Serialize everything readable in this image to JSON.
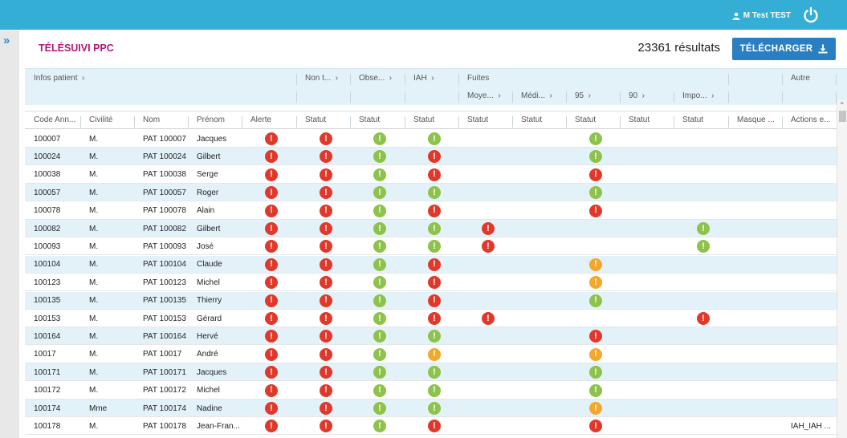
{
  "user": {
    "name": "M Test TEST",
    "icon": "user-icon"
  },
  "power_icon": "power-icon",
  "sidebar_toggle": "»",
  "page": {
    "title": "TÉLÉSUIVI PPC",
    "results": "23361 résultats",
    "download_label": "TÉLÉCHARGER",
    "download_icon": "download-icon"
  },
  "colors": {
    "topbar": "#34aed4",
    "red": "#e0392b",
    "green": "#8dc24b",
    "orange": "#f3a72d",
    "accent": "#2a7fc2",
    "title": "#b01878"
  },
  "groups": {
    "infos_patient": "Infos patient",
    "non_t": "Non t...",
    "obse": "Obse...",
    "iah": "IAH",
    "fuites": "Fuites",
    "autre": "Autre"
  },
  "subgroups": {
    "moye": "Moye...",
    "medi": "Médi...",
    "p95": "95",
    "p90": "90",
    "impo": "Impo..."
  },
  "columns": [
    "Code Ann...",
    "Civilité",
    "Nom",
    "Prénom",
    "Alerte",
    "Statut",
    "Statut",
    "Statut",
    "Statut",
    "Statut",
    "Statut",
    "Statut",
    "Statut",
    "Masque ...",
    "Actions e..."
  ],
  "rows": [
    {
      "code": "100007",
      "civ": "M.",
      "nom": "PAT 100007",
      "prenom": "Jacques",
      "alerte": "red",
      "s1": "red",
      "s2": "green",
      "s3": "green",
      "s4": "",
      "s5": "",
      "s6": "green",
      "s7": "",
      "s8": "",
      "actions": ""
    },
    {
      "code": "100024",
      "civ": "M.",
      "nom": "PAT 100024",
      "prenom": "Gilbert",
      "alerte": "red",
      "s1": "red",
      "s2": "green",
      "s3": "red",
      "s4": "",
      "s5": "",
      "s6": "green",
      "s7": "",
      "s8": "",
      "actions": ""
    },
    {
      "code": "100038",
      "civ": "M.",
      "nom": "PAT 100038",
      "prenom": "Serge",
      "alerte": "red",
      "s1": "red",
      "s2": "green",
      "s3": "red",
      "s4": "",
      "s5": "",
      "s6": "red",
      "s7": "",
      "s8": "",
      "actions": ""
    },
    {
      "code": "100057",
      "civ": "M.",
      "nom": "PAT 100057",
      "prenom": "Roger",
      "alerte": "red",
      "s1": "red",
      "s2": "green",
      "s3": "green",
      "s4": "",
      "s5": "",
      "s6": "green",
      "s7": "",
      "s8": "",
      "actions": ""
    },
    {
      "code": "100078",
      "civ": "M.",
      "nom": "PAT 100078",
      "prenom": "Alain",
      "alerte": "red",
      "s1": "red",
      "s2": "green",
      "s3": "red",
      "s4": "",
      "s5": "",
      "s6": "red",
      "s7": "",
      "s8": "",
      "actions": ""
    },
    {
      "code": "100082",
      "civ": "M.",
      "nom": "PAT 100082",
      "prenom": "Gilbert",
      "alerte": "red",
      "s1": "red",
      "s2": "green",
      "s3": "green",
      "s4": "red",
      "s5": "",
      "s6": "",
      "s7": "",
      "s8": "green",
      "actions": ""
    },
    {
      "code": "100093",
      "civ": "M.",
      "nom": "PAT 100093",
      "prenom": "José",
      "alerte": "red",
      "s1": "red",
      "s2": "green",
      "s3": "green",
      "s4": "red",
      "s5": "",
      "s6": "",
      "s7": "",
      "s8": "green",
      "actions": ""
    },
    {
      "code": "100104",
      "civ": "M.",
      "nom": "PAT 100104",
      "prenom": "Claude",
      "alerte": "red",
      "s1": "red",
      "s2": "green",
      "s3": "red",
      "s4": "",
      "s5": "",
      "s6": "orange",
      "s7": "",
      "s8": "",
      "actions": ""
    },
    {
      "code": "100123",
      "civ": "M.",
      "nom": "PAT 100123",
      "prenom": "Michel",
      "alerte": "red",
      "s1": "red",
      "s2": "green",
      "s3": "red",
      "s4": "",
      "s5": "",
      "s6": "orange",
      "s7": "",
      "s8": "",
      "actions": ""
    },
    {
      "code": "100135",
      "civ": "M.",
      "nom": "PAT 100135",
      "prenom": "Thierry",
      "alerte": "red",
      "s1": "red",
      "s2": "green",
      "s3": "red",
      "s4": "",
      "s5": "",
      "s6": "green",
      "s7": "",
      "s8": "",
      "actions": ""
    },
    {
      "code": "100153",
      "civ": "M.",
      "nom": "PAT 100153",
      "prenom": "Gérard",
      "alerte": "red",
      "s1": "red",
      "s2": "green",
      "s3": "red",
      "s4": "red",
      "s5": "",
      "s6": "",
      "s7": "",
      "s8": "red",
      "actions": ""
    },
    {
      "code": "100164",
      "civ": "M.",
      "nom": "PAT 100164",
      "prenom": "Hervé",
      "alerte": "red",
      "s1": "red",
      "s2": "green",
      "s3": "green",
      "s4": "",
      "s5": "",
      "s6": "red",
      "s7": "",
      "s8": "",
      "actions": ""
    },
    {
      "code": "10017",
      "civ": "M.",
      "nom": "PAT 10017",
      "prenom": "André",
      "alerte": "red",
      "s1": "red",
      "s2": "green",
      "s3": "orange",
      "s4": "",
      "s5": "",
      "s6": "orange",
      "s7": "",
      "s8": "",
      "actions": ""
    },
    {
      "code": "100171",
      "civ": "M.",
      "nom": "PAT 100171",
      "prenom": "Jacques",
      "alerte": "red",
      "s1": "red",
      "s2": "green",
      "s3": "green",
      "s4": "",
      "s5": "",
      "s6": "green",
      "s7": "",
      "s8": "",
      "actions": ""
    },
    {
      "code": "100172",
      "civ": "M.",
      "nom": "PAT 100172",
      "prenom": "Michel",
      "alerte": "red",
      "s1": "red",
      "s2": "green",
      "s3": "green",
      "s4": "",
      "s5": "",
      "s6": "green",
      "s7": "",
      "s8": "",
      "actions": ""
    },
    {
      "code": "100174",
      "civ": "Mme",
      "nom": "PAT 100174",
      "prenom": "Nadine",
      "alerte": "red",
      "s1": "red",
      "s2": "green",
      "s3": "green",
      "s4": "",
      "s5": "",
      "s6": "orange",
      "s7": "",
      "s8": "",
      "actions": ""
    },
    {
      "code": "100178",
      "civ": "M.",
      "nom": "PAT 100178",
      "prenom": "Jean-Fran...",
      "alerte": "red",
      "s1": "red",
      "s2": "green",
      "s3": "red",
      "s4": "",
      "s5": "",
      "s6": "red",
      "s7": "",
      "s8": "",
      "actions": "IAH_IAH ..."
    }
  ]
}
